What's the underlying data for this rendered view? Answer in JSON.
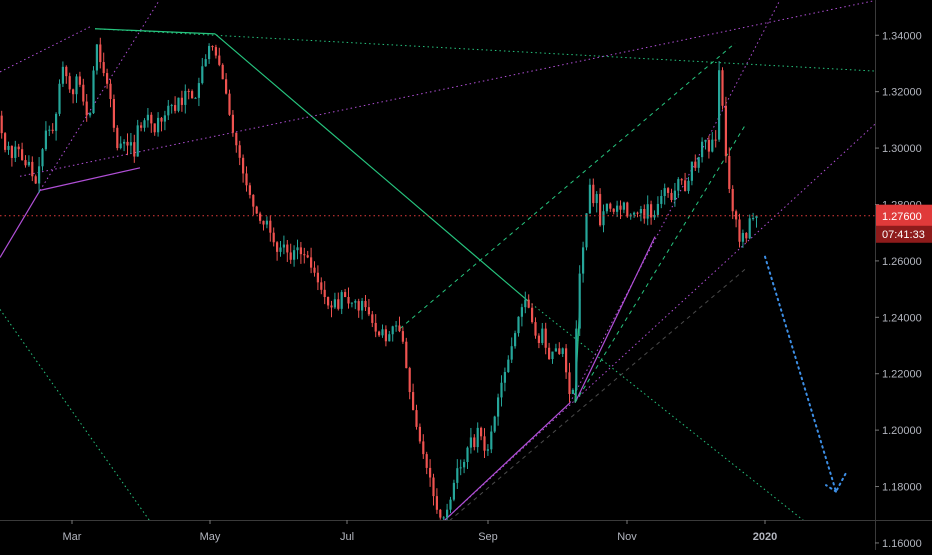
{
  "chart_data": {
    "type": "candlestick",
    "instrument": "",
    "y_axis": {
      "ticks": [
        "1.34000",
        "1.32000",
        "1.30000",
        "1.28000",
        "1.26000",
        "1.24000",
        "1.22000",
        "1.20000",
        "1.18000",
        "1.16000"
      ],
      "tick_values": [
        1.34,
        1.32,
        1.3,
        1.28,
        1.26,
        1.24,
        1.22,
        1.2,
        1.18,
        1.16
      ],
      "range": [
        1.1575,
        1.3525
      ]
    },
    "x_axis": {
      "labels": [
        "Mar",
        "May",
        "Jul",
        "Sep",
        "Nov",
        "2020"
      ]
    },
    "last_price": {
      "value": "1.27600",
      "countdown": "07:41:33",
      "price": 1.276,
      "color": "#e03a3a"
    },
    "price_path": [
      [
        0,
        1.3115
      ],
      [
        3,
        1.306
      ],
      [
        7,
        1.299
      ],
      [
        10,
        1.301
      ],
      [
        14,
        1.296
      ],
      [
        18,
        1.302
      ],
      [
        22,
        1.298
      ],
      [
        26,
        1.293
      ],
      [
        30,
        1.296
      ],
      [
        34,
        1.29
      ],
      [
        38,
        1.287
      ],
      [
        41,
        1.294
      ],
      [
        45,
        1.301
      ],
      [
        49,
        1.309
      ],
      [
        53,
        1.304
      ],
      [
        57,
        1.31
      ],
      [
        60,
        1.318
      ],
      [
        63,
        1.33
      ],
      [
        67,
        1.327
      ],
      [
        71,
        1.321
      ],
      [
        75,
        1.319
      ],
      [
        79,
        1.327
      ],
      [
        83,
        1.32
      ],
      [
        87,
        1.313
      ],
      [
        91,
        1.309
      ],
      [
        95,
        1.326
      ],
      [
        97,
        1.341
      ],
      [
        100,
        1.333
      ],
      [
        104,
        1.328
      ],
      [
        108,
        1.324
      ],
      [
        112,
        1.318
      ],
      [
        116,
        1.306
      ],
      [
        120,
        1.298
      ],
      [
        124,
        1.304
      ],
      [
        128,
        1.3
      ],
      [
        132,
        1.303
      ],
      [
        136,
        1.297
      ],
      [
        140,
        1.31
      ],
      [
        144,
        1.306
      ],
      [
        148,
        1.313
      ],
      [
        152,
        1.31
      ],
      [
        156,
        1.305
      ],
      [
        160,
        1.311
      ],
      [
        164,
        1.309
      ],
      [
        168,
        1.313
      ],
      [
        172,
        1.317
      ],
      [
        176,
        1.312
      ],
      [
        180,
        1.318
      ],
      [
        184,
        1.315
      ],
      [
        188,
        1.322
      ],
      [
        192,
        1.319
      ],
      [
        196,
        1.316
      ],
      [
        200,
        1.322
      ],
      [
        204,
        1.329
      ],
      [
        208,
        1.332
      ],
      [
        212,
        1.338
      ],
      [
        216,
        1.334
      ],
      [
        220,
        1.331
      ],
      [
        224,
        1.325
      ],
      [
        228,
        1.319
      ],
      [
        232,
        1.31
      ],
      [
        236,
        1.303
      ],
      [
        240,
        1.299
      ],
      [
        244,
        1.292
      ],
      [
        248,
        1.287
      ],
      [
        252,
        1.283
      ],
      [
        256,
        1.278
      ],
      [
        260,
        1.276
      ],
      [
        264,
        1.272
      ],
      [
        268,
        1.275
      ],
      [
        272,
        1.27
      ],
      [
        276,
        1.266
      ],
      [
        280,
        1.262
      ],
      [
        284,
        1.267
      ],
      [
        288,
        1.264
      ],
      [
        292,
        1.26
      ],
      [
        296,
        1.264
      ],
      [
        300,
        1.265
      ],
      [
        304,
        1.261
      ],
      [
        308,
        1.263
      ],
      [
        312,
        1.258
      ],
      [
        316,
        1.256
      ],
      [
        320,
        1.252
      ],
      [
        324,
        1.249
      ],
      [
        328,
        1.246
      ],
      [
        332,
        1.242
      ],
      [
        336,
        1.247
      ],
      [
        340,
        1.243
      ],
      [
        344,
        1.25
      ],
      [
        348,
        1.246
      ],
      [
        352,
        1.244
      ],
      [
        356,
        1.247
      ],
      [
        360,
        1.242
      ],
      [
        364,
        1.246
      ],
      [
        368,
        1.243
      ],
      [
        372,
        1.24
      ],
      [
        376,
        1.236
      ],
      [
        380,
        1.233
      ],
      [
        384,
        1.236
      ],
      [
        388,
        1.231
      ],
      [
        392,
        1.235
      ],
      [
        396,
        1.238
      ],
      [
        400,
        1.236
      ],
      [
        404,
        1.233
      ],
      [
        408,
        1.222
      ],
      [
        412,
        1.212
      ],
      [
        416,
        1.205
      ],
      [
        420,
        1.198
      ],
      [
        424,
        1.193
      ],
      [
        428,
        1.187
      ],
      [
        432,
        1.183
      ],
      [
        436,
        1.175
      ],
      [
        440,
        1.17
      ],
      [
        444,
        1.168
      ],
      [
        448,
        1.171
      ],
      [
        452,
        1.175
      ],
      [
        456,
        1.182
      ],
      [
        460,
        1.188
      ],
      [
        464,
        1.186
      ],
      [
        468,
        1.192
      ],
      [
        472,
        1.198
      ],
      [
        476,
        1.194
      ],
      [
        480,
        1.202
      ],
      [
        484,
        1.196
      ],
      [
        488,
        1.19
      ],
      [
        492,
        1.198
      ],
      [
        496,
        1.204
      ],
      [
        500,
        1.212
      ],
      [
        504,
        1.218
      ],
      [
        508,
        1.222
      ],
      [
        512,
        1.228
      ],
      [
        516,
        1.233
      ],
      [
        520,
        1.24
      ],
      [
        524,
        1.244
      ],
      [
        528,
        1.247
      ],
      [
        532,
        1.241
      ],
      [
        536,
        1.235
      ],
      [
        540,
        1.23
      ],
      [
        544,
        1.236
      ],
      [
        548,
        1.228
      ],
      [
        552,
        1.224
      ],
      [
        556,
        1.231
      ],
      [
        560,
        1.226
      ],
      [
        564,
        1.23
      ],
      [
        568,
        1.22
      ],
      [
        572,
        1.211
      ],
      [
        576,
        1.216
      ],
      [
        578,
        1.236
      ],
      [
        580,
        1.252
      ],
      [
        584,
        1.262
      ],
      [
        588,
        1.276
      ],
      [
        591,
        1.289
      ],
      [
        594,
        1.279
      ],
      [
        598,
        1.285
      ],
      [
        602,
        1.272
      ],
      [
        606,
        1.279
      ],
      [
        610,
        1.281
      ],
      [
        614,
        1.276
      ],
      [
        618,
        1.28
      ],
      [
        622,
        1.278
      ],
      [
        626,
        1.281
      ],
      [
        630,
        1.274
      ],
      [
        634,
        1.278
      ],
      [
        638,
        1.276
      ],
      [
        642,
        1.279
      ],
      [
        646,
        1.275
      ],
      [
        650,
        1.281
      ],
      [
        654,
        1.273
      ],
      [
        658,
        1.279
      ],
      [
        662,
        1.282
      ],
      [
        666,
        1.286
      ],
      [
        670,
        1.284
      ],
      [
        674,
        1.281
      ],
      [
        678,
        1.287
      ],
      [
        682,
        1.291
      ],
      [
        686,
        1.284
      ],
      [
        690,
        1.288
      ],
      [
        694,
        1.296
      ],
      [
        698,
        1.292
      ],
      [
        702,
        1.3
      ],
      [
        706,
        1.305
      ],
      [
        710,
        1.298
      ],
      [
        714,
        1.303
      ],
      [
        716,
        1.296
      ],
      [
        718,
        1.306
      ],
      [
        720,
        1.332
      ],
      [
        722,
        1.321
      ],
      [
        724,
        1.316
      ],
      [
        726,
        1.306
      ],
      [
        728,
        1.295
      ],
      [
        730,
        1.288
      ],
      [
        732,
        1.283
      ],
      [
        734,
        1.279
      ],
      [
        736,
        1.272
      ],
      [
        738,
        1.275
      ],
      [
        740,
        1.268
      ],
      [
        742,
        1.266
      ],
      [
        744,
        1.269
      ],
      [
        746,
        1.272
      ],
      [
        748,
        1.268
      ],
      [
        750,
        1.273
      ],
      [
        752,
        1.276
      ],
      [
        754,
        1.274
      ],
      [
        756,
        1.277
      ],
      [
        758,
        1.276
      ]
    ],
    "trendlines": [
      {
        "kind": "solid",
        "color": "#26c47e",
        "points": [
          [
            95,
            1.3423
          ],
          [
            215,
            1.3405
          ]
        ]
      },
      {
        "kind": "solid",
        "color": "#26c47e",
        "points": [
          [
            215,
            1.3405
          ],
          [
            528,
            1.2458
          ]
        ]
      },
      {
        "kind": "dotted",
        "color": "#26c47e",
        "points": [
          [
            95,
            1.3423
          ],
          [
            875,
            1.3273
          ]
        ]
      },
      {
        "kind": "dotted",
        "color": "#26c47e",
        "points": [
          [
            528,
            1.2458
          ],
          [
            830,
            1.1605
          ]
        ]
      },
      {
        "kind": "dotted",
        "color": "#26c47e",
        "points": [
          [
            0,
            1.2428
          ],
          [
            165,
            1.1602
          ]
        ]
      },
      {
        "kind": "solid",
        "color": "#26c47e",
        "points": [
          [
            575,
            1.21
          ],
          [
            580,
            1.2465
          ]
        ]
      },
      {
        "kind": "solid",
        "color": "#b04fd6",
        "points": [
          [
            40,
            1.285
          ],
          [
            140,
            1.293
          ]
        ]
      },
      {
        "kind": "solid",
        "color": "#b04fd6",
        "points": [
          [
            0,
            1.2612
          ],
          [
            40,
            1.285
          ]
        ]
      },
      {
        "kind": "solid",
        "color": "#b04fd6",
        "points": [
          [
            440,
            1.1665
          ],
          [
            570,
            1.2097
          ]
        ]
      },
      {
        "kind": "solid",
        "color": "#b04fd6",
        "points": [
          [
            575,
            1.2097
          ],
          [
            655,
            1.2686
          ]
        ]
      },
      {
        "kind": "dotted",
        "color": "#b04fd6",
        "points": [
          [
            40,
            1.285
          ],
          [
            160,
            1.3528
          ]
        ]
      },
      {
        "kind": "dotted",
        "color": "#b04fd6",
        "points": [
          [
            0,
            1.327
          ],
          [
            90,
            1.343
          ]
        ]
      },
      {
        "kind": "dotted",
        "color": "#b04fd6",
        "points": [
          [
            20,
            1.29
          ],
          [
            875,
            1.3523
          ]
        ]
      },
      {
        "kind": "dotted",
        "color": "#b04fd6",
        "points": [
          [
            570,
            1.2097
          ],
          [
            780,
            1.3525
          ]
        ]
      },
      {
        "kind": "dotted",
        "color": "#b04fd6",
        "points": [
          [
            440,
            1.1665
          ],
          [
            875,
            1.3085
          ]
        ]
      },
      {
        "kind": "dashed",
        "color": "#26c47e",
        "points": [
          [
            400,
            1.236
          ],
          [
            735,
            1.3372
          ]
        ]
      },
      {
        "kind": "dashed",
        "color": "#26c47e",
        "points": [
          [
            575,
            1.2097
          ],
          [
            745,
            1.308
          ]
        ]
      },
      {
        "kind": "dashed",
        "color": "#4a4a4a",
        "points": [
          [
            425,
            1.1605
          ],
          [
            745,
            1.257
          ]
        ]
      }
    ],
    "projection": {
      "color": "#3d8fe6",
      "points": [
        [
          765,
          1.2615
        ],
        [
          836,
          1.1782
        ],
        [
          847,
          1.1855
        ]
      ]
    },
    "colors": {
      "up": "#26a69a",
      "down": "#ef5350",
      "background": "#000000",
      "axis_text": "#b2b5be"
    }
  }
}
